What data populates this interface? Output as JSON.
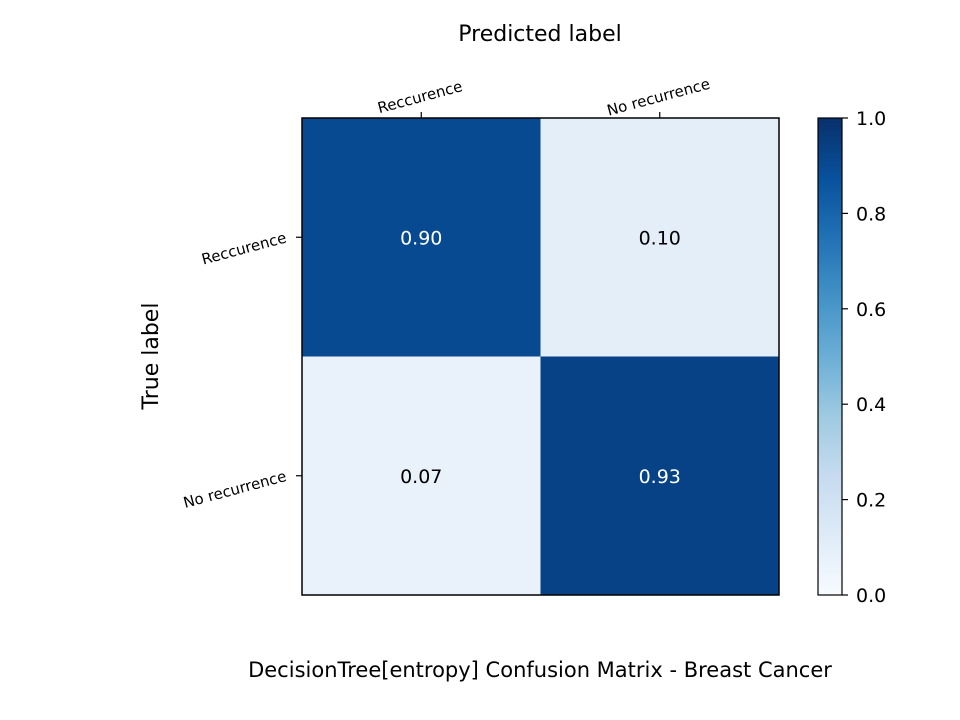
{
  "chart_data": {
    "type": "heatmap",
    "title": "DecisionTree[entropy]  Confusion Matrix - Breast Cancer",
    "xlabel": "Predicted label",
    "ylabel": "True label",
    "x_categories": [
      "Reccurence",
      "No recurrence"
    ],
    "y_categories": [
      "Reccurence",
      "No recurrence"
    ],
    "values": [
      [
        0.9,
        0.1
      ],
      [
        0.07,
        0.93
      ]
    ],
    "value_labels": [
      [
        "0.90",
        "0.10"
      ],
      [
        "0.07",
        "0.93"
      ]
    ],
    "colormap": "Blues",
    "colorbar": {
      "range": [
        0.0,
        1.0
      ],
      "ticks": [
        "0.0",
        "0.2",
        "0.4",
        "0.6",
        "0.8",
        "1.0"
      ]
    },
    "x_axis_position": "top",
    "grid": false
  }
}
